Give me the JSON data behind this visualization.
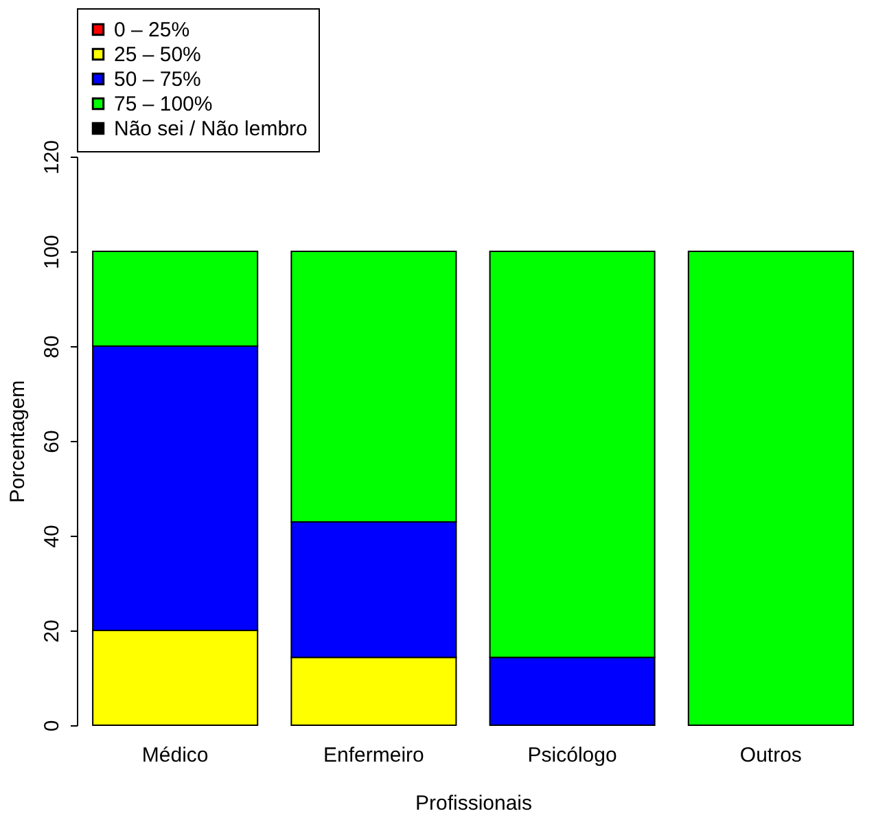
{
  "chart_data": {
    "type": "bar",
    "stacked": true,
    "xlabel": "Profissionais",
    "ylabel": "Porcentagem",
    "categories": [
      "Médico",
      "Enfermeiro",
      "Psicólogo",
      "Outros"
    ],
    "series": [
      {
        "name": "0 – 25%",
        "color": "#ff0000",
        "values": [
          0,
          0,
          0,
          0
        ]
      },
      {
        "name": "25 – 50%",
        "color": "#ffff00",
        "values": [
          20,
          14.3,
          0,
          0
        ]
      },
      {
        "name": "50 – 75%",
        "color": "#0000ff",
        "values": [
          60,
          28.6,
          14.3,
          0
        ]
      },
      {
        "name": "75 – 100%",
        "color": "#00ff00",
        "values": [
          20,
          57.1,
          85.7,
          100
        ]
      },
      {
        "name": "Não sei / Não lembro",
        "color": "#000000",
        "values": [
          0,
          0,
          0,
          0
        ]
      }
    ],
    "ylim": [
      0,
      120
    ],
    "yticks": [
      0,
      20,
      40,
      60,
      80,
      100,
      120
    ],
    "grid": false,
    "legend": "top"
  }
}
